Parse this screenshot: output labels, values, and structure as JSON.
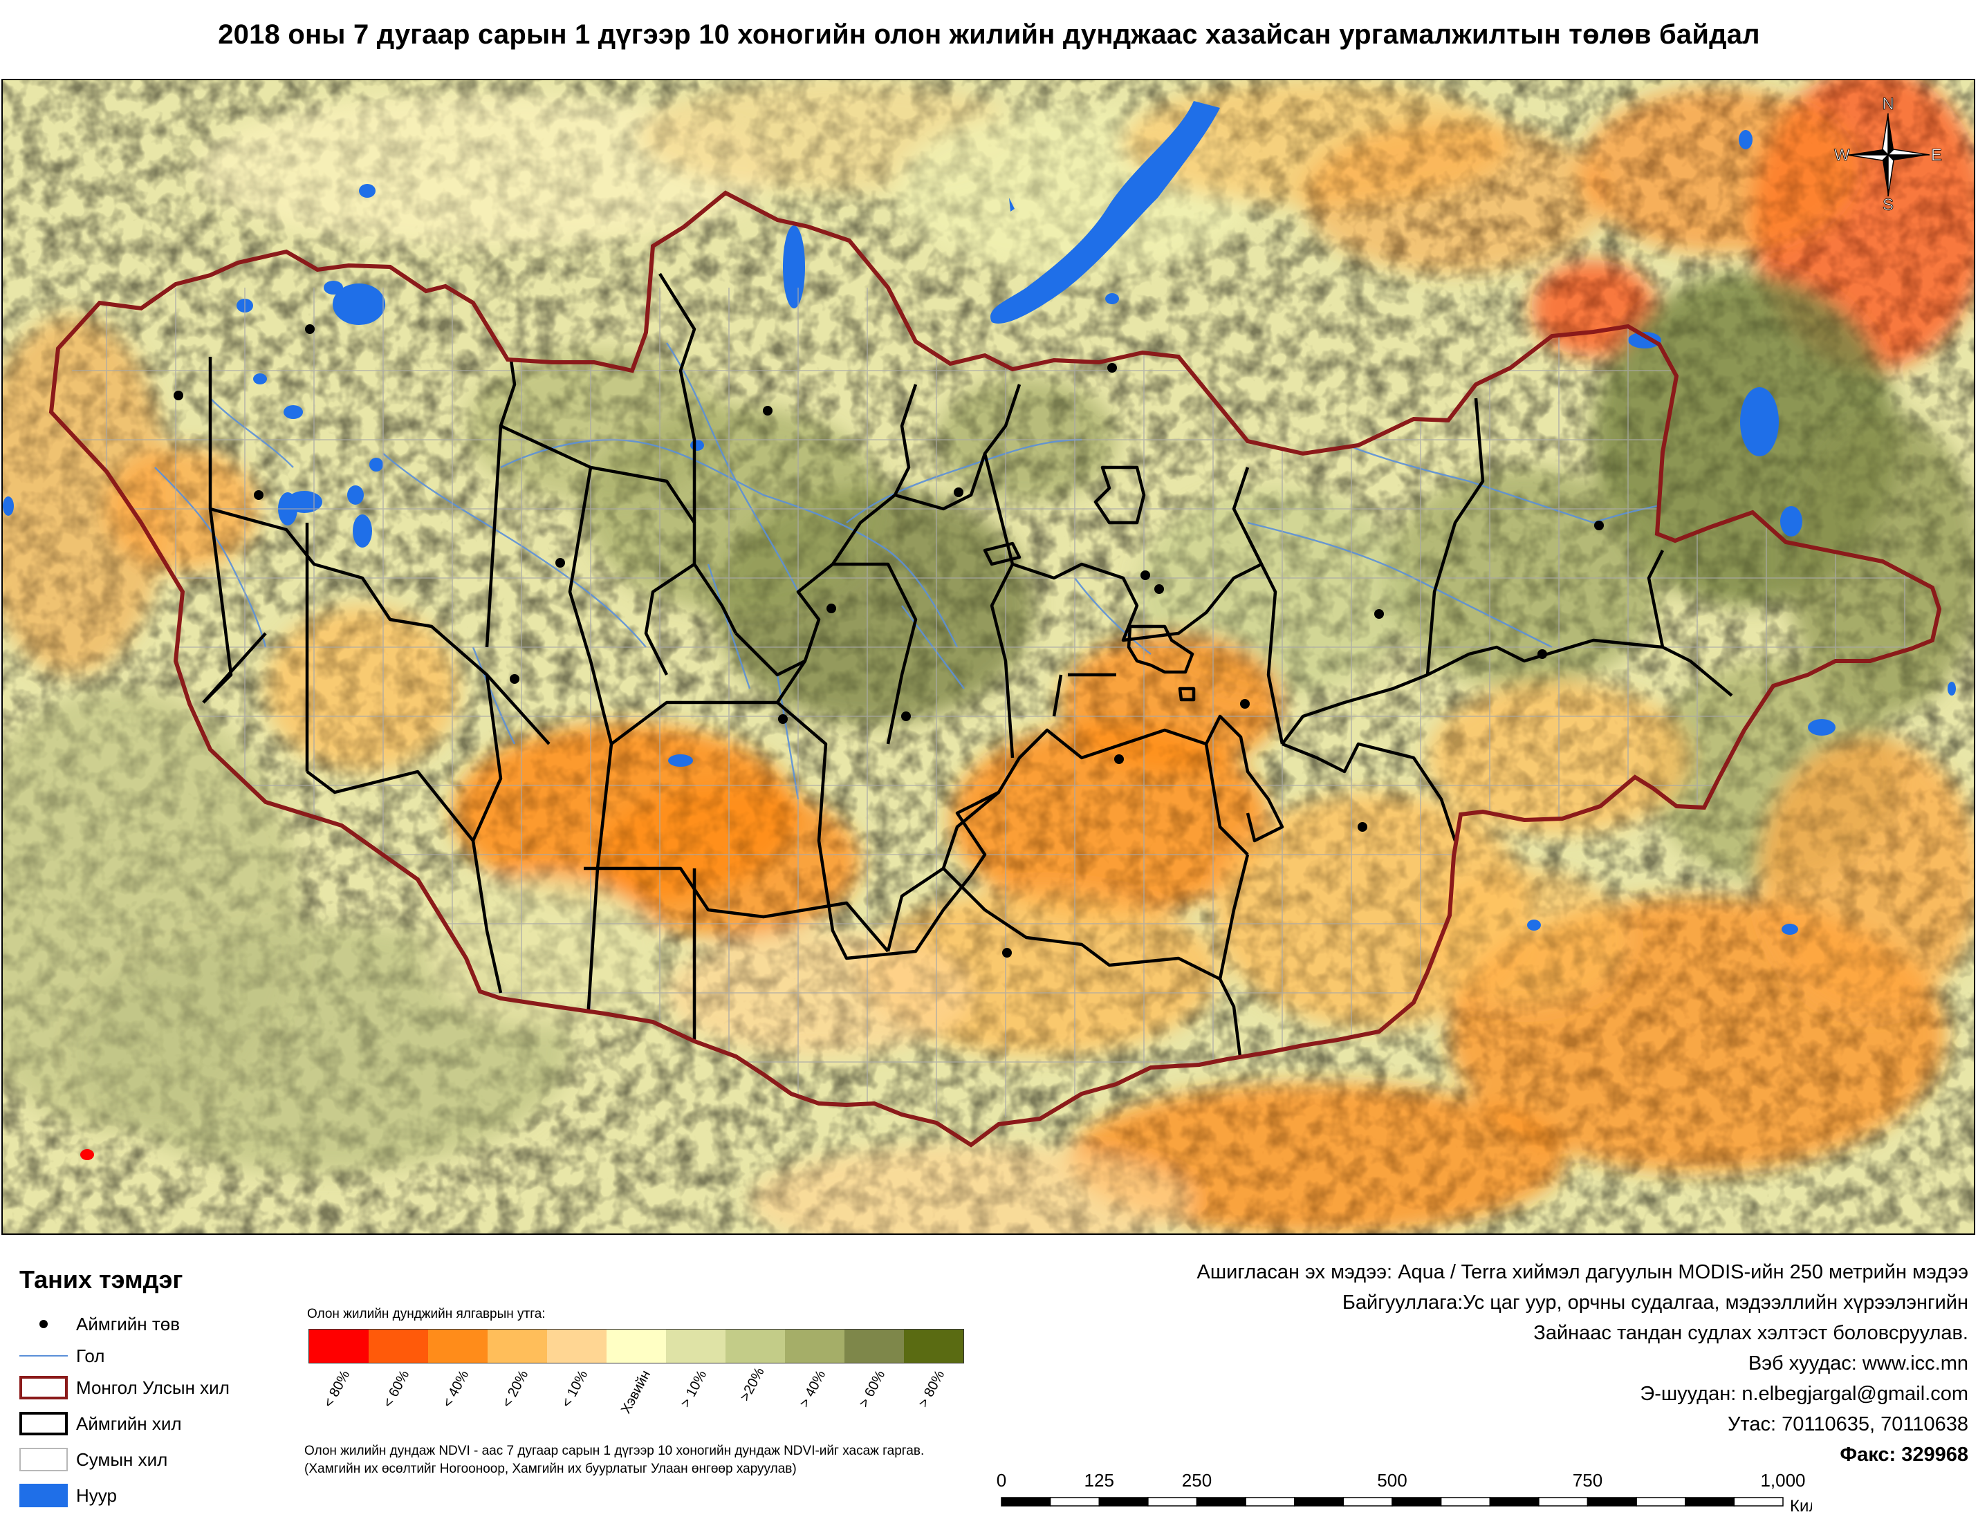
{
  "title": "2018 оны 7 дугаар сарын 1 дүгээр 10 хоногийн олон жилийн дунджаас хазайсан ургамалжилтын төлөв байдал",
  "compass": {
    "n": "N",
    "s": "S",
    "w": "W",
    "e": "E"
  },
  "legend": {
    "title": "Таних тэмдэг",
    "items": [
      {
        "label": "Аймгийн төв",
        "symbol": "dot"
      },
      {
        "label": "Гол",
        "symbol": "river-line"
      },
      {
        "label": "Монгол Улсын хил",
        "symbol": "country-border"
      },
      {
        "label": "Аймгийн хил",
        "symbol": "aimag-border"
      },
      {
        "label": "Сумын хил",
        "symbol": "sum-border"
      },
      {
        "label": "Нуур",
        "symbol": "lake"
      }
    ],
    "colors": {
      "river": "#5b8fd8",
      "country_border": "#8b1a1a",
      "aimag_border": "#000000",
      "sum_border": "#b8b8b8",
      "lake": "#1f6fe8"
    }
  },
  "ramp": {
    "label": "Олон жилийн дунджийн ялгаврын утга:",
    "classes": [
      {
        "label": "< 80%",
        "color": "#ff0000"
      },
      {
        "label": "< 60%",
        "color": "#ff5a0a"
      },
      {
        "label": "< 40%",
        "color": "#ff8c1a"
      },
      {
        "label": "< 20%",
        "color": "#ffbe5a"
      },
      {
        "label": "< 10%",
        "color": "#ffd693"
      },
      {
        "label": "Хэвийн",
        "color": "#ffffc4"
      },
      {
        "label": "> 10%",
        "color": "#dfe3a6"
      },
      {
        "label": ">20%",
        "color": "#c3cc88"
      },
      {
        "label": "> 40%",
        "color": "#a5ae68"
      },
      {
        "label": "> 60%",
        "color": "#7e874a"
      },
      {
        "label": "> 80%",
        "color": "#5a6b12"
      }
    ]
  },
  "note": {
    "line1": "Олон жилийн дундаж NDVI - аас 7 дугаар сарын 1 дүгээр 10 хоногийн дундаж NDVI-ийг хасаж гаргав.",
    "line2": "(Хамгийн их өсөлтийг Ногооноор,  Хамгийн их буурлатыг Улаан өнгөөр харуулав)"
  },
  "credits": [
    "Ашигласан эх мэдээ: Aqua / Terra хиймэл дагуулын MODIS-ийн 250 метрийн мэдээ",
    "Байгууллага:Ус цаг уур, орчны судалгаа, мэдээллийн хүрээлэнгийн",
    "Зайнаас тандан судлах хэлтэст боловсруулав.",
    "Вэб хуудас: www.icc.mn",
    "Э-шуудан: n.elbegjargal@gmail.com",
    "Утас: 70110635, 70110638",
    "Факс: 329968"
  ],
  "scale": {
    "ticks": [
      "0",
      "125",
      "250",
      "500",
      "750",
      "1,000"
    ],
    "unit": "Километр"
  },
  "map": {
    "aimag_centers_count": 21
  }
}
